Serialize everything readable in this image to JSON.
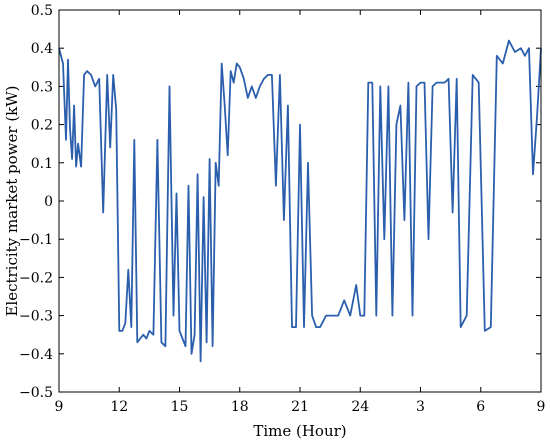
{
  "chart_data": {
    "type": "line",
    "xlabel": "Time (Hour)",
    "ylabel": "Electricity market power (kW)",
    "x_ticks": [
      "9",
      "12",
      "15",
      "18",
      "21",
      "24",
      "3",
      "6",
      "9"
    ],
    "ylim": [
      -0.5,
      0.5
    ],
    "y_ticks": [
      -0.5,
      -0.4,
      -0.3,
      -0.2,
      -0.1,
      0,
      0.1,
      0.2,
      0.3,
      0.4,
      0.5
    ],
    "y_tick_labels": [
      "−0.5",
      "−0.4",
      "−0.3",
      "−0.2",
      "−0.1",
      "0",
      "0.1",
      "0.2",
      "0.3",
      "0.4",
      "0.5"
    ],
    "line_color": "#2b5fad",
    "series": [
      {
        "x": [
          9.0,
          9.2,
          9.35,
          9.45,
          9.55,
          9.65,
          9.75,
          9.85,
          9.95,
          10.1,
          10.25,
          10.4,
          10.6,
          10.8,
          11.0,
          11.2,
          11.4,
          11.55,
          11.7,
          11.85,
          12.0,
          12.15,
          12.3,
          12.45,
          12.6,
          12.75,
          12.9,
          13.05,
          13.2,
          13.35,
          13.5,
          13.7,
          13.9,
          14.1,
          14.3,
          14.5,
          14.7,
          14.85,
          15.0,
          15.15,
          15.3,
          15.45,
          15.6,
          15.75,
          15.9,
          16.05,
          16.2,
          16.35,
          16.5,
          16.65,
          16.8,
          16.95,
          17.1,
          17.25,
          17.4,
          17.55,
          17.7,
          17.85,
          18.0,
          18.2,
          18.4,
          18.6,
          18.8,
          19.0,
          19.2,
          19.4,
          19.6,
          19.8,
          20.0,
          20.2,
          20.4,
          20.6,
          20.8,
          21.0,
          21.2,
          21.4,
          21.6,
          21.8,
          22.0,
          22.3,
          22.6,
          22.9,
          23.2,
          23.5,
          23.8,
          24.0,
          24.2,
          24.4,
          24.6,
          24.8,
          25.0,
          25.2,
          25.4,
          25.6,
          25.8,
          26.0,
          26.2,
          26.4,
          26.6,
          26.8,
          27.0,
          27.2,
          27.4,
          27.6,
          27.8,
          28.0,
          28.2,
          28.4,
          28.6,
          28.8,
          29.0,
          29.3,
          29.6,
          29.9,
          30.2,
          30.5,
          30.8,
          31.1,
          31.4,
          31.7,
          32.0,
          32.2,
          32.4,
          32.6,
          32.8,
          33.0
        ],
        "values": [
          0.4,
          0.36,
          0.16,
          0.37,
          0.19,
          0.11,
          0.25,
          0.09,
          0.15,
          0.09,
          0.33,
          0.34,
          0.33,
          0.3,
          0.32,
          -0.03,
          0.33,
          0.14,
          0.33,
          0.24,
          -0.34,
          -0.34,
          -0.32,
          -0.18,
          -0.33,
          0.16,
          -0.37,
          -0.36,
          -0.35,
          -0.36,
          -0.34,
          -0.35,
          0.16,
          -0.37,
          -0.38,
          0.3,
          -0.3,
          0.02,
          -0.34,
          -0.36,
          -0.38,
          0.04,
          -0.4,
          -0.35,
          0.07,
          -0.42,
          0.01,
          -0.37,
          0.11,
          -0.38,
          0.1,
          0.04,
          0.36,
          0.25,
          0.12,
          0.34,
          0.31,
          0.36,
          0.35,
          0.32,
          0.27,
          0.3,
          0.27,
          0.3,
          0.32,
          0.33,
          0.33,
          0.04,
          0.33,
          -0.05,
          0.25,
          -0.33,
          -0.33,
          0.2,
          -0.33,
          0.1,
          -0.3,
          -0.33,
          -0.33,
          -0.3,
          -0.3,
          -0.3,
          -0.26,
          -0.3,
          -0.22,
          -0.3,
          -0.3,
          0.31,
          0.31,
          -0.3,
          0.3,
          -0.1,
          0.3,
          -0.3,
          0.2,
          0.25,
          -0.05,
          0.31,
          -0.3,
          0.3,
          0.31,
          0.31,
          -0.1,
          0.3,
          0.31,
          0.31,
          0.31,
          0.32,
          -0.03,
          0.32,
          -0.33,
          -0.3,
          0.33,
          0.31,
          -0.34,
          -0.33,
          0.38,
          0.36,
          0.42,
          0.39,
          0.4,
          0.38,
          0.4,
          0.07,
          0.22,
          0.4
        ]
      }
    ]
  }
}
